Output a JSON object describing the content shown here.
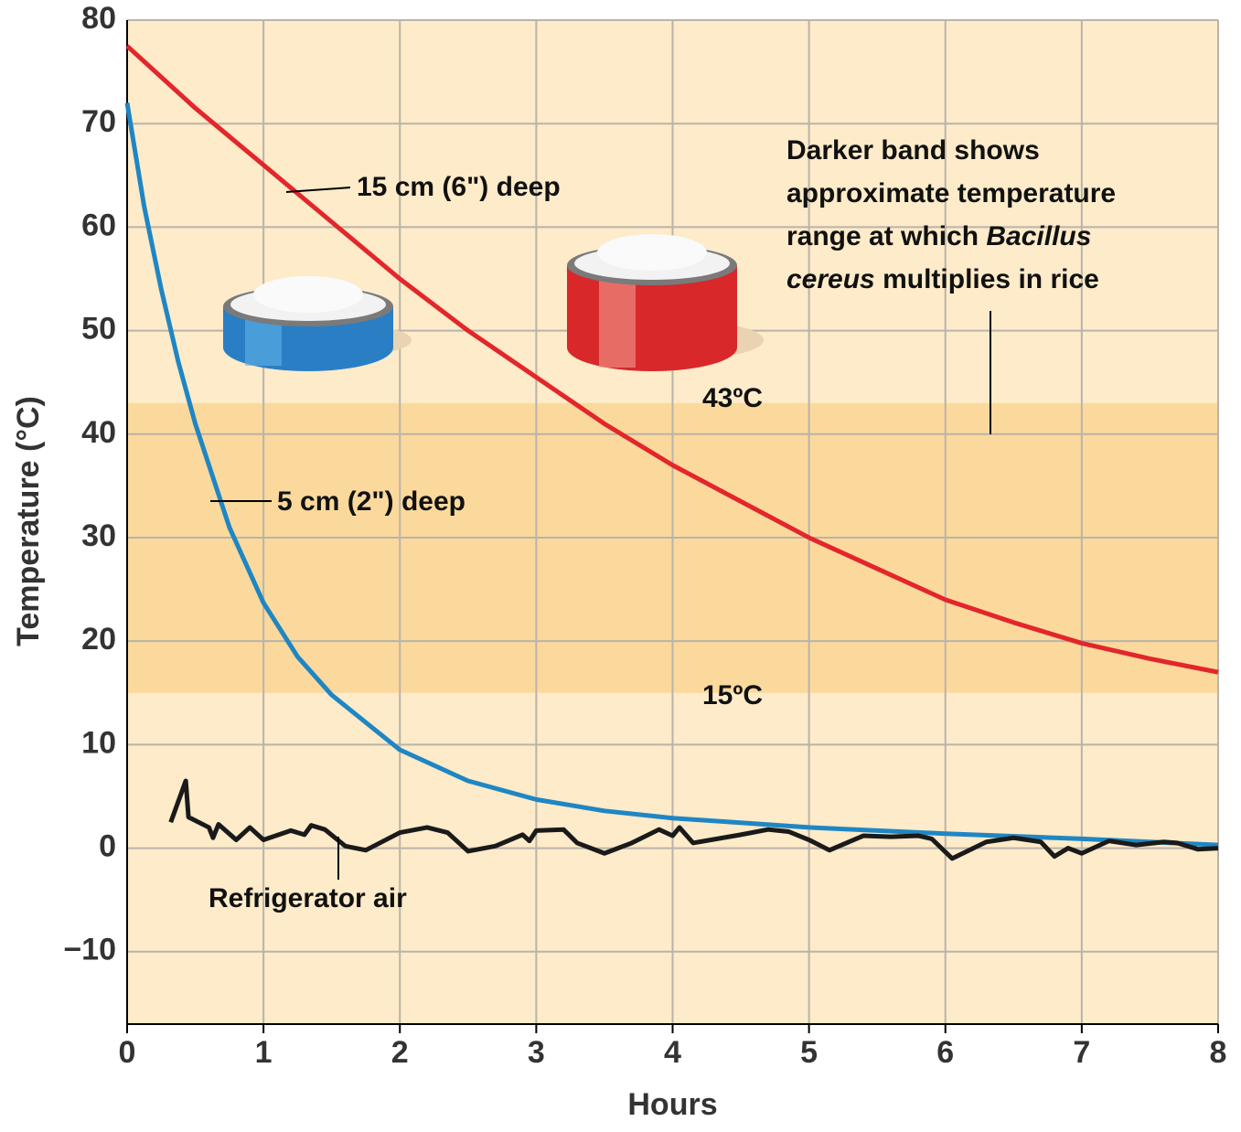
{
  "chart_data": {
    "type": "line",
    "xlabel": "Hours",
    "ylabel": "Temperature (°C)",
    "xlim": [
      0,
      8
    ],
    "ylim": [
      -17,
      80
    ],
    "xticks": [
      0,
      1,
      2,
      3,
      4,
      5,
      6,
      7,
      8
    ],
    "yticks": [
      {
        "value": -10,
        "label": "−10"
      },
      0,
      10,
      20,
      30,
      40,
      50,
      60,
      70,
      80
    ],
    "grid": true,
    "background": "#fdebc9",
    "band": {
      "color": "#fbd99c",
      "from": {
        "value": 15,
        "label": "15ºC"
      },
      "to": {
        "value": 43,
        "label": "43ºC"
      }
    },
    "band_note": [
      [
        {
          "text": "Darker band shows"
        }
      ],
      [
        {
          "text": "approximate temperature"
        }
      ],
      [
        {
          "text": "range at which "
        },
        {
          "text": "Bacillus",
          "italic": true
        }
      ],
      [
        {
          "text": "cereus",
          "italic": true
        },
        {
          "text": " multiplies in rice"
        }
      ]
    ],
    "series": [
      {
        "name": "15 cm (6\") deep",
        "color": "#e3262b",
        "x": [
          0,
          0.5,
          1,
          1.5,
          2,
          2.5,
          3,
          3.5,
          4,
          4.5,
          5,
          5.5,
          6,
          6.5,
          7,
          7.5,
          8
        ],
        "values": [
          77.5,
          71.5,
          66,
          60.5,
          55,
          50,
          45.5,
          41,
          37,
          33.5,
          30,
          27,
          24,
          21.8,
          19.8,
          18.3,
          17
        ]
      },
      {
        "name": "5 cm (2\") deep",
        "color": "#1f86c4",
        "x": [
          0,
          0.125,
          0.25,
          0.375,
          0.5,
          0.75,
          1,
          1.25,
          1.5,
          2,
          2.5,
          3,
          3.5,
          4,
          5,
          6,
          7,
          8
        ],
        "values": [
          72,
          62,
          54,
          47,
          41,
          31,
          23.7,
          18.5,
          14.8,
          9.5,
          6.5,
          4.7,
          3.6,
          2.9,
          2,
          1.4,
          0.9,
          0.3
        ]
      },
      {
        "name": "Refrigerator air",
        "color": "#1a1a1a",
        "x": [
          0.32,
          0.43,
          0.45,
          0.6,
          0.63,
          0.67,
          0.8,
          0.9,
          1.0,
          1.2,
          1.3,
          1.35,
          1.45,
          1.6,
          1.75,
          2.0,
          2.2,
          2.35,
          2.5,
          2.7,
          2.9,
          2.95,
          3.0,
          3.2,
          3.3,
          3.5,
          3.7,
          3.9,
          4.0,
          4.05,
          4.15,
          4.5,
          4.7,
          4.85,
          5.0,
          5.15,
          5.4,
          5.6,
          5.8,
          5.9,
          6.05,
          6.3,
          6.5,
          6.7,
          6.8,
          6.9,
          7.0,
          7.2,
          7.4,
          7.6,
          7.7,
          7.85,
          8.0
        ],
        "values": [
          2.5,
          6.5,
          3,
          2,
          1,
          2.3,
          0.8,
          2,
          0.8,
          1.7,
          1.3,
          2.2,
          1.8,
          0.2,
          -0.2,
          1.5,
          2,
          1.5,
          -0.3,
          0.2,
          1.3,
          0.7,
          1.7,
          1.8,
          0.5,
          -0.5,
          0.5,
          1.8,
          1.2,
          2,
          0.5,
          1.3,
          1.8,
          1.6,
          0.8,
          -0.2,
          1.2,
          1.1,
          1.2,
          0.9,
          -1,
          0.6,
          1,
          0.6,
          -0.8,
          0,
          -0.5,
          0.7,
          0.3,
          0.6,
          0.5,
          -0.1,
          0
        ]
      }
    ]
  }
}
